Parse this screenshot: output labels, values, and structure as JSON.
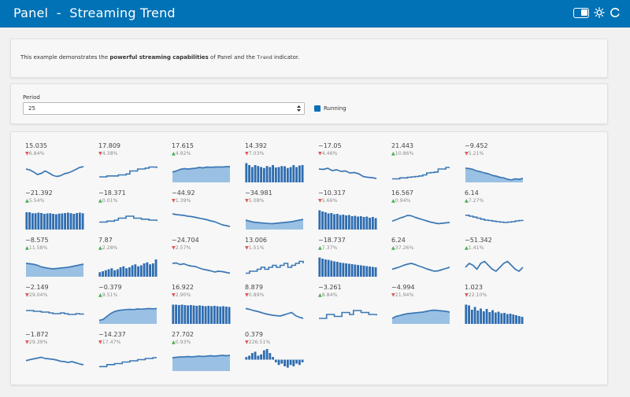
{
  "header": {
    "title": "Panel  -  Streaming Trend"
  },
  "description": {
    "before": "This example demonstrates the ",
    "bold": "powerful streaming capabilities",
    "middle": " of Panel and the ",
    "code": "Trend",
    "after": " indicator."
  },
  "period": {
    "label": "Period",
    "value": "25"
  },
  "running": {
    "label": "Running",
    "checked": true
  },
  "colors": {
    "header": "#0072b5",
    "trend_line": "#3b78b5",
    "trend_fill": "#9ac1e3",
    "trend_bar": "#2f6db0",
    "up_arrow": "#4caf50",
    "down_arrow": "#e05a5a"
  },
  "trends": [
    {
      "value": "15.035",
      "change": "6.84%",
      "direction": "down",
      "kind": "line",
      "points": [
        6,
        5.5,
        4.5,
        3.2,
        3.8,
        5,
        4,
        2.8,
        2.2,
        2.6,
        3.6,
        4,
        4.8,
        5.8,
        6.8,
        7.2
      ]
    },
    {
      "value": "17.809",
      "change": "4.38%",
      "direction": "down",
      "kind": "step",
      "points": [
        2,
        2,
        2.5,
        2.5,
        2.5,
        3,
        3,
        3.5,
        5,
        5,
        6,
        6,
        6.5,
        7,
        7,
        6.5
      ]
    },
    {
      "value": "17.615",
      "change": "4.92%",
      "direction": "up",
      "kind": "area",
      "points": [
        4.5,
        5,
        5.8,
        6.2,
        6,
        6.2,
        6.4,
        6.8,
        6.6,
        7,
        6.9,
        7,
        7.1,
        7,
        7.2,
        7.2
      ]
    },
    {
      "value": "14.392",
      "change": "7.03%",
      "direction": "down",
      "kind": "bar",
      "points": [
        9,
        8,
        7,
        8,
        7.5,
        7,
        6.5,
        7.5,
        7,
        8,
        6.8,
        7,
        7.5,
        7.4,
        6.5,
        7,
        8,
        7,
        7.8,
        8
      ]
    },
    {
      "value": "−17.05",
      "change": "4.46%",
      "direction": "down",
      "kind": "line",
      "points": [
        6,
        5.8,
        6.4,
        5.2,
        5.6,
        4.8,
        5,
        4,
        4.2,
        3.6,
        2.2,
        1.8,
        1.6,
        1.2
      ]
    },
    {
      "value": "21.443",
      "change": "10.86%",
      "direction": "up",
      "kind": "step",
      "points": [
        1,
        1,
        1.5,
        1.5,
        1.8,
        2,
        2.2,
        2.5,
        3,
        4,
        4.2,
        4.5,
        6,
        6,
        6.8,
        6.8
      ]
    },
    {
      "value": "−9.452",
      "change": "5.21%",
      "direction": "down",
      "kind": "area",
      "points": [
        6.5,
        6.2,
        5.8,
        5,
        4.6,
        4,
        3.6,
        2.8,
        2.4,
        1.8,
        1.5,
        0.8,
        0.5,
        1,
        0.8,
        1.2
      ]
    },
    {
      "value": "−21.392",
      "change": "5.54%",
      "direction": "up",
      "kind": "bar",
      "points": [
        8,
        8,
        7.5,
        7.5,
        7.8,
        7.6,
        7.2,
        7.4,
        7.5,
        7.2,
        7,
        7.3,
        7.4,
        7.6,
        7.8,
        7.5,
        7.2,
        7.6,
        7.8,
        7.5
      ]
    },
    {
      "value": "−18.371",
      "change": "0.01%",
      "direction": "up",
      "kind": "step",
      "points": [
        3,
        3,
        3.5,
        3.5,
        4,
        5,
        5,
        6,
        6,
        5,
        5,
        4.5,
        4.5,
        4,
        4,
        3.5
      ]
    },
    {
      "value": "−44.92",
      "change": "1.39%",
      "direction": "down",
      "kind": "line",
      "points": [
        7.2,
        6.8,
        6.6,
        6.4,
        6,
        5.8,
        5.4,
        5,
        4.6,
        4.2,
        3.6,
        3.2,
        2.4,
        1.6,
        1.2,
        0.8
      ]
    },
    {
      "value": "−34.981",
      "change": "5.08%",
      "direction": "down",
      "kind": "area",
      "points": [
        4,
        3.5,
        3,
        2.8,
        2.6,
        2.5,
        2.3,
        2.2,
        2.4,
        2.6,
        2.8,
        3,
        3.2,
        3.6,
        4,
        4.4
      ]
    },
    {
      "value": "−10.317",
      "change": "5.66%",
      "direction": "down",
      "kind": "bar",
      "points": [
        9,
        8.4,
        8,
        7.4,
        7.6,
        7,
        7.2,
        6.6,
        6.8,
        6.4,
        6.6,
        6,
        6.2,
        5.8,
        6,
        5.6,
        5.8,
        5.2,
        5.6,
        5
      ]
    },
    {
      "value": "16.567",
      "change": "0.94%",
      "direction": "up",
      "kind": "line",
      "points": [
        3.5,
        4.2,
        5,
        5.6,
        6.4,
        6.2,
        5.4,
        4.8,
        4.2,
        3.6,
        3,
        2.6,
        2.2,
        2.4,
        2.6,
        2.8
      ]
    },
    {
      "value": "6.14",
      "change": "7.27%",
      "direction": "up",
      "kind": "step",
      "points": [
        6.5,
        6,
        5.5,
        5,
        4.5,
        4,
        3.8,
        3.5,
        3.2,
        3,
        2.8,
        3,
        3.2,
        3.6,
        3.8,
        3.6
      ]
    },
    {
      "value": "−8.575",
      "change": "11.58%",
      "direction": "up",
      "kind": "area",
      "points": [
        6,
        5.8,
        5.5,
        5,
        4.2,
        3.8,
        3.5,
        3.2,
        3.4,
        3.6,
        3.8,
        4,
        4.4,
        4.8,
        5.2,
        5.6
      ]
    },
    {
      "value": "7.87",
      "change": "2.28%",
      "direction": "up",
      "kind": "bar",
      "points": [
        1.5,
        2,
        2.5,
        3,
        3.5,
        2.5,
        3,
        4,
        4.5,
        3.5,
        4,
        5,
        5.5,
        4.5,
        5,
        6,
        6.5,
        5.5,
        6,
        8
      ]
    },
    {
      "value": "−24.704",
      "change": "2.57%",
      "direction": "down",
      "kind": "line",
      "points": [
        6,
        6.2,
        5.4,
        5.8,
        5,
        4.6,
        4.4,
        3.6,
        3,
        2.6,
        2.2,
        1.6,
        2,
        1.8,
        1.4,
        1
      ]
    },
    {
      "value": "13.006",
      "change": "1.51%",
      "direction": "down",
      "kind": "step",
      "points": [
        1,
        2,
        2,
        3,
        4,
        3,
        4,
        5,
        4,
        5,
        6,
        4,
        5,
        6,
        7,
        6
      ]
    },
    {
      "value": "−18.737",
      "change": "7.37%",
      "direction": "up",
      "kind": "bar",
      "points": [
        9,
        8.4,
        8,
        7.8,
        7.4,
        7,
        6.8,
        6.4,
        6.2,
        6,
        5.8,
        5.6,
        5.4,
        5.2,
        5,
        4.8,
        4.6,
        4.4,
        4.2,
        4
      ]
    },
    {
      "value": "6.24",
      "change": "37.26%",
      "direction": "up",
      "kind": "line",
      "points": [
        3,
        3.6,
        4.2,
        5,
        5.6,
        6,
        5.4,
        4.6,
        4,
        3.2,
        2.6,
        2,
        2.2,
        2.8,
        3.4,
        4
      ]
    },
    {
      "value": "−51.342",
      "change": "1.41%",
      "direction": "up",
      "kind": "line",
      "points": [
        4,
        6,
        5,
        3,
        6,
        7,
        5,
        3,
        2,
        4,
        6,
        7,
        5,
        3,
        2,
        4
      ]
    },
    {
      "value": "−2.149",
      "change": "29.04%",
      "direction": "down",
      "kind": "step",
      "points": [
        6,
        6,
        5.6,
        5.6,
        5.2,
        5.2,
        4.8,
        4.4,
        4.4,
        4.8,
        4.4,
        4,
        4,
        4.4,
        4.2,
        4.4
      ]
    },
    {
      "value": "−0.379",
      "change": "9.51%",
      "direction": "up",
      "kind": "area",
      "points": [
        1,
        1.5,
        3,
        4.5,
        5.5,
        6,
        6.3,
        6.5,
        6.6,
        6.5,
        6.8,
        6.7,
        6.9,
        7,
        6.9,
        7
      ]
    },
    {
      "value": "16.922",
      "change": "2.90%",
      "direction": "down",
      "kind": "bar",
      "points": [
        9,
        9,
        8.8,
        9,
        8.8,
        8.6,
        8.8,
        8.6,
        8.4,
        8.6,
        8.4,
        8.2,
        8.4,
        8.2,
        8.4,
        8.2,
        8,
        8.2,
        8,
        7.8
      ]
    },
    {
      "value": "8.879",
      "change": "0.89%",
      "direction": "down",
      "kind": "line",
      "points": [
        7,
        6.6,
        6,
        5.6,
        5,
        4.4,
        4,
        3.6,
        3.4,
        3.2,
        3.8,
        4.4,
        5,
        3.4,
        2.6,
        2
      ]
    },
    {
      "value": "−3.261",
      "change": "8.84%",
      "direction": "up",
      "kind": "step",
      "points": [
        2,
        2,
        4,
        4,
        3,
        3,
        5,
        5,
        4,
        6,
        6,
        5,
        5,
        4,
        4,
        3.5
      ]
    },
    {
      "value": "−4.994",
      "change": "21.94%",
      "direction": "down",
      "kind": "area",
      "points": [
        2,
        3,
        3.5,
        4,
        4.4,
        4.6,
        4.8,
        5,
        5.2,
        5.6,
        6,
        6.2,
        6,
        5.8,
        5.6,
        5.2
      ]
    },
    {
      "value": "1.023",
      "change": "22.10%",
      "direction": "down",
      "kind": "bar",
      "points": [
        9,
        8.6,
        6.4,
        7.8,
        6,
        7,
        5.6,
        6.8,
        5.2,
        6.2,
        5,
        5.4,
        4.6,
        4.8,
        4.2,
        4.4,
        4,
        3.6,
        3.2,
        2.8
      ]
    },
    {
      "value": "−1.872",
      "change": "29.39%",
      "direction": "down",
      "kind": "line",
      "points": [
        4.5,
        5,
        5.4,
        5.8,
        6.2,
        5.6,
        5.4,
        5.2,
        4.8,
        4.2,
        4,
        3.6,
        4,
        3.4,
        2.8,
        2.4
      ]
    },
    {
      "value": "−14.237",
      "change": "17.47%",
      "direction": "down",
      "kind": "step",
      "points": [
        1.5,
        1.5,
        2.5,
        2.5,
        3,
        3,
        3.8,
        3.8,
        4.4,
        4.4,
        5,
        5,
        5.6,
        5.6,
        6,
        6
      ]
    },
    {
      "value": "27.702",
      "change": "0.93%",
      "direction": "up",
      "kind": "area",
      "points": [
        6,
        6.2,
        6.4,
        6.4,
        6.6,
        6.4,
        6.6,
        6.8,
        6.6,
        6.8,
        7,
        6.8,
        7,
        7.2,
        7,
        7.2
      ]
    },
    {
      "value": "0.379",
      "change": "226.51%",
      "direction": "down",
      "kind": "bipolar",
      "points": [
        1,
        1.5,
        2.5,
        3,
        1.5,
        2,
        3.5,
        4,
        2.5,
        1,
        -1,
        -2,
        -1.5,
        -2.5,
        -3,
        -2,
        -2.5,
        -1.5,
        -2,
        -1
      ]
    }
  ]
}
